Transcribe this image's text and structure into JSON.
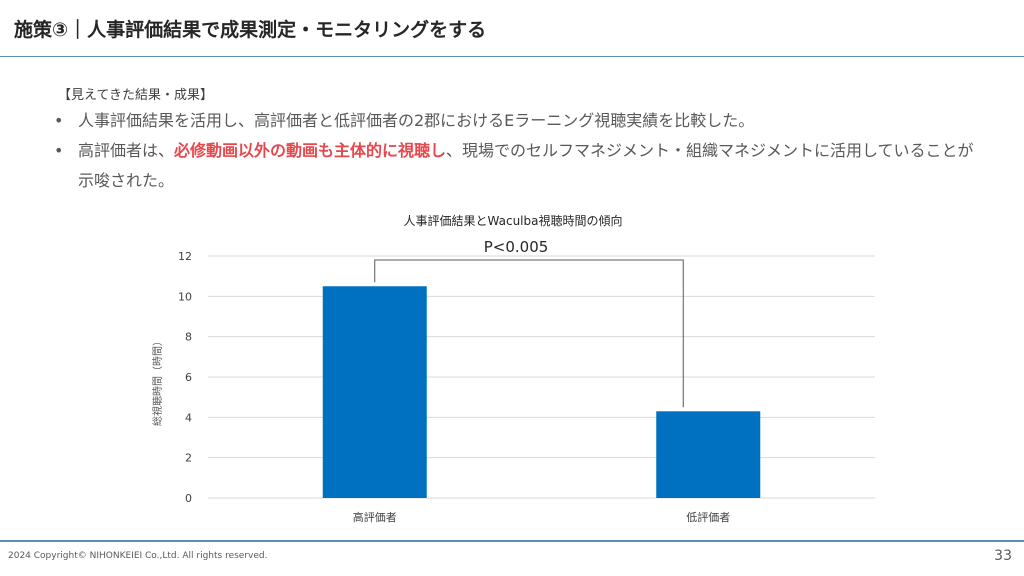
{
  "slide": {
    "title": "施策③｜人事評価結果で成果測定・モニタリングをする",
    "section_label": "【見えてきた結果・成果】",
    "bullets": [
      {
        "text": "人事評価結果を活用し、高評価者と低評価者の2郡におけるEラーニング視聴実績を比較した。"
      },
      {
        "text_before": "高評価者は、",
        "emphasis": "必修動画以外の動画も主体的に視聴し",
        "text_after": "、現場でのセルフマネジメント・組織マネジメントに活用していることが示唆された。"
      }
    ],
    "bullet_symbol": "•",
    "copyright": "2024 Copyright© NIHONKEIEI Co.,Ltd. All rights reserved.",
    "page_number": "33"
  },
  "colors": {
    "bar": "#0070c0",
    "emphasis": "#e5484d",
    "rule": "#5a8fb0",
    "grid": "#d9d9d9"
  },
  "chart_data": {
    "type": "bar",
    "title": "人事評価結果とWaculba視聴時間の傾向",
    "categories": [
      "高評価者",
      "低評価者"
    ],
    "values": [
      10.5,
      4.3
    ],
    "ylabel": "総視聴時間（時間）",
    "xlabel": "",
    "ylim": [
      0,
      12
    ],
    "yticks": [
      0,
      2,
      4,
      6,
      8,
      10,
      12
    ],
    "grid": true,
    "annotation": "P<0.005"
  }
}
